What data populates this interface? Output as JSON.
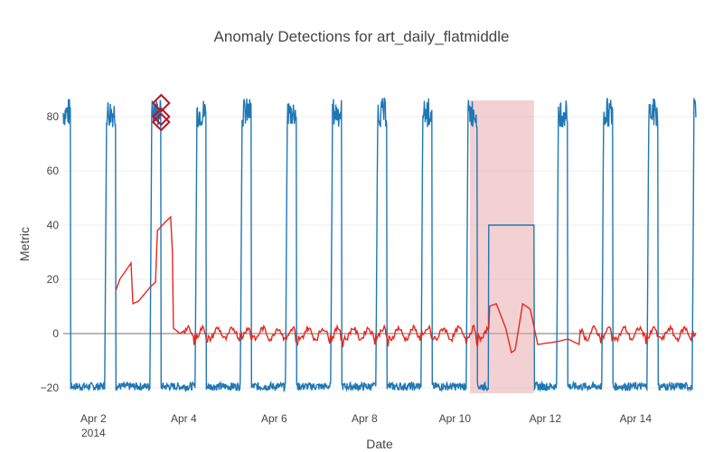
{
  "chart_data": {
    "type": "line",
    "title": "Anomaly Detections for art_daily_flatmiddle",
    "xlabel": "Date",
    "ylabel": "Metric",
    "xlim": [
      "2014-04-01T08:00",
      "2014-04-15T08:00"
    ],
    "ylim": [
      -22,
      88
    ],
    "grid": true,
    "legend": "none",
    "x_ticks": [
      {
        "value": "2014-04-02",
        "label": "Apr 2",
        "sublabel": "2014"
      },
      {
        "value": "2014-04-04",
        "label": "Apr 4"
      },
      {
        "value": "2014-04-06",
        "label": "Apr 6"
      },
      {
        "value": "2014-04-08",
        "label": "Apr 8"
      },
      {
        "value": "2014-04-10",
        "label": "Apr 10"
      },
      {
        "value": "2014-04-12",
        "label": "Apr 12"
      },
      {
        "value": "2014-04-14",
        "label": "Apr 14"
      }
    ],
    "y_ticks": [
      {
        "value": -20,
        "label": "−20"
      },
      {
        "value": 0,
        "label": "0"
      },
      {
        "value": 20,
        "label": "20"
      },
      {
        "value": 40,
        "label": "40"
      },
      {
        "value": 60,
        "label": "60"
      },
      {
        "value": 80,
        "label": "80"
      }
    ],
    "series": [
      {
        "color": "#1f77b4",
        "style": "daily-square-wave",
        "high_range": [
          76,
          87
        ],
        "low_range": [
          -21,
          -18
        ],
        "daily_high_start_hour": 6,
        "daily_high_end_hour": 12,
        "flat_segment": {
          "start": "2014-04-10T18:00",
          "end": "2014-04-11T18:00",
          "value": 40
        }
      },
      {
        "color": "#e8261c",
        "style": "residual",
        "points": [
          [
            "2014-04-02T12:00",
            16
          ],
          [
            "2014-04-02T14:00",
            20
          ],
          [
            "2014-04-02T18:00",
            24
          ],
          [
            "2014-04-02T20:00",
            26
          ],
          [
            "2014-04-02T21:00",
            11
          ],
          [
            "2014-04-03T00:00",
            12
          ],
          [
            "2014-04-03T06:00",
            17
          ],
          [
            "2014-04-03T09:00",
            19
          ],
          [
            "2014-04-03T10:00",
            38
          ],
          [
            "2014-04-03T14:00",
            41
          ],
          [
            "2014-04-03T17:00",
            43
          ],
          [
            "2014-04-03T18:00",
            30
          ],
          [
            "2014-04-03T18:30",
            2
          ],
          [
            "2014-04-03T22:00",
            0
          ],
          [
            "2014-04-04T00:00",
            1
          ],
          [
            "2014-04-10T18:00",
            10
          ],
          [
            "2014-04-10T22:00",
            11
          ],
          [
            "2014-04-11T03:00",
            2
          ],
          [
            "2014-04-11T06:00",
            -7
          ],
          [
            "2014-04-11T08:00",
            -6
          ],
          [
            "2014-04-11T12:00",
            11
          ],
          [
            "2014-04-11T16:00",
            9
          ],
          [
            "2014-04-11T20:00",
            -4
          ],
          [
            "2014-04-12T06:00",
            -3
          ],
          [
            "2014-04-12T12:00",
            -2
          ],
          [
            "2014-04-12T18:00",
            -4
          ]
        ]
      }
    ],
    "anomalies": [
      {
        "x": "2014-04-03T12:00",
        "y": 85,
        "color": "#b2182b",
        "marker": "diamond-open"
      },
      {
        "x": "2014-04-03T12:00",
        "y": 80,
        "color": "#b2182b",
        "marker": "diamond-open"
      },
      {
        "x": "2014-04-03T12:00",
        "y": 78,
        "color": "#b2182b",
        "marker": "diamond-open"
      }
    ],
    "highlight_region": {
      "start": "2014-04-10T08:00",
      "end": "2014-04-11T18:00",
      "color": "#e8a3a8"
    }
  }
}
